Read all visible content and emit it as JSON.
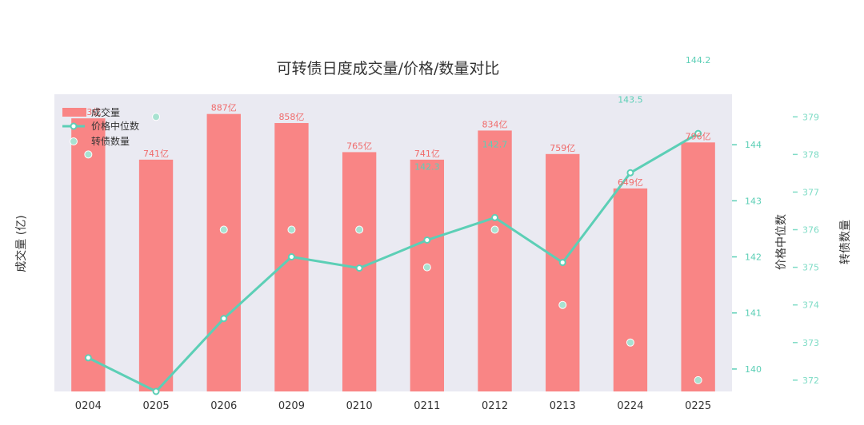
{
  "chart_data": {
    "type": "bar",
    "title": "可转债日度成交量/价格/数量对比",
    "categories": [
      "0204",
      "0205",
      "0206",
      "0209",
      "0210",
      "0211",
      "0212",
      "0213",
      "0224",
      "0225"
    ],
    "ylabel": "成交量 (亿)",
    "y2label": "价格中位数",
    "y3label": "转债数量",
    "ylim": [
      0,
      950
    ],
    "y2lim": [
      139.6,
      144.9
    ],
    "y3lim": [
      371.7,
      379.6
    ],
    "y2ticks": [
      "140",
      "141",
      "142",
      "143",
      "144"
    ],
    "y3ticks": [
      "372",
      "373",
      "374",
      "375",
      "376",
      "377",
      "378",
      "379"
    ],
    "grid": false,
    "legend_position": "top-left",
    "series": [
      {
        "name": "成交量",
        "type": "bar",
        "axis": "left",
        "color": "#f98585",
        "values": [
          873,
          741,
          887,
          858,
          765,
          741,
          834,
          759,
          649,
          796
        ],
        "labels": [
          "873亿",
          "741亿",
          "887亿",
          "858亿",
          "765亿",
          "741亿",
          "834亿",
          "759亿",
          "649亿",
          "796亿"
        ]
      },
      {
        "name": "价格中位数",
        "type": "line",
        "axis": "right",
        "color": "#5ccfb6",
        "values": [
          140.2,
          139.6,
          140.9,
          142.0,
          141.8,
          142.3,
          142.7,
          141.9,
          143.5,
          144.2
        ],
        "labels": [
          "140.2",
          "139.6",
          "140.9",
          "142.0",
          "141.8",
          "142.3",
          "142.7",
          "141.9",
          "143.5",
          "144.2"
        ]
      },
      {
        "name": "转债数量",
        "type": "scatter",
        "axis": "right2",
        "color": "#a8e2d1",
        "values": [
          378,
          379,
          376,
          376,
          376,
          375,
          376,
          374,
          373,
          372
        ],
        "labels": [
          "",
          "",
          "",
          "",
          "",
          "",
          "",
          "",
          "",
          ""
        ]
      }
    ]
  }
}
